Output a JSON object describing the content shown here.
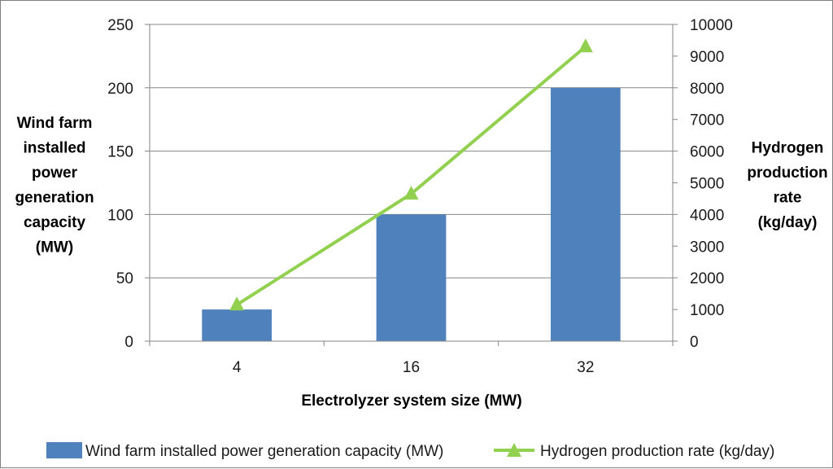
{
  "chart_data": {
    "type": "bar+line",
    "categories": [
      "4",
      "16",
      "32"
    ],
    "series": [
      {
        "name": "Wind farm installed power generation capacity (MW)",
        "type": "bar",
        "axis": "left",
        "values": [
          25,
          100,
          200
        ],
        "color": "#4f81bd"
      },
      {
        "name": "Hydrogen production rate (kg/day)",
        "type": "line",
        "axis": "right",
        "marker": "triangle",
        "values": [
          1150,
          4650,
          9300
        ],
        "color": "#92d050"
      }
    ],
    "xlabel": "Electrolyzer system size (MW)",
    "ylabel_left": [
      "Wind farm",
      "installed",
      "power",
      "generation",
      "capacity",
      "(MW)"
    ],
    "ylabel_right": [
      "Hydrogen",
      "production",
      "rate",
      "(kg/day)"
    ],
    "ylim_left": [
      0,
      250
    ],
    "yticks_left": [
      "0",
      "50",
      "100",
      "150",
      "200",
      "250"
    ],
    "ylim_right": [
      0,
      10000
    ],
    "yticks_right": [
      "0",
      "1000",
      "2000",
      "3000",
      "4000",
      "5000",
      "6000",
      "7000",
      "8000",
      "9000",
      "10000"
    ],
    "grid": true,
    "legend_position": "bottom"
  }
}
